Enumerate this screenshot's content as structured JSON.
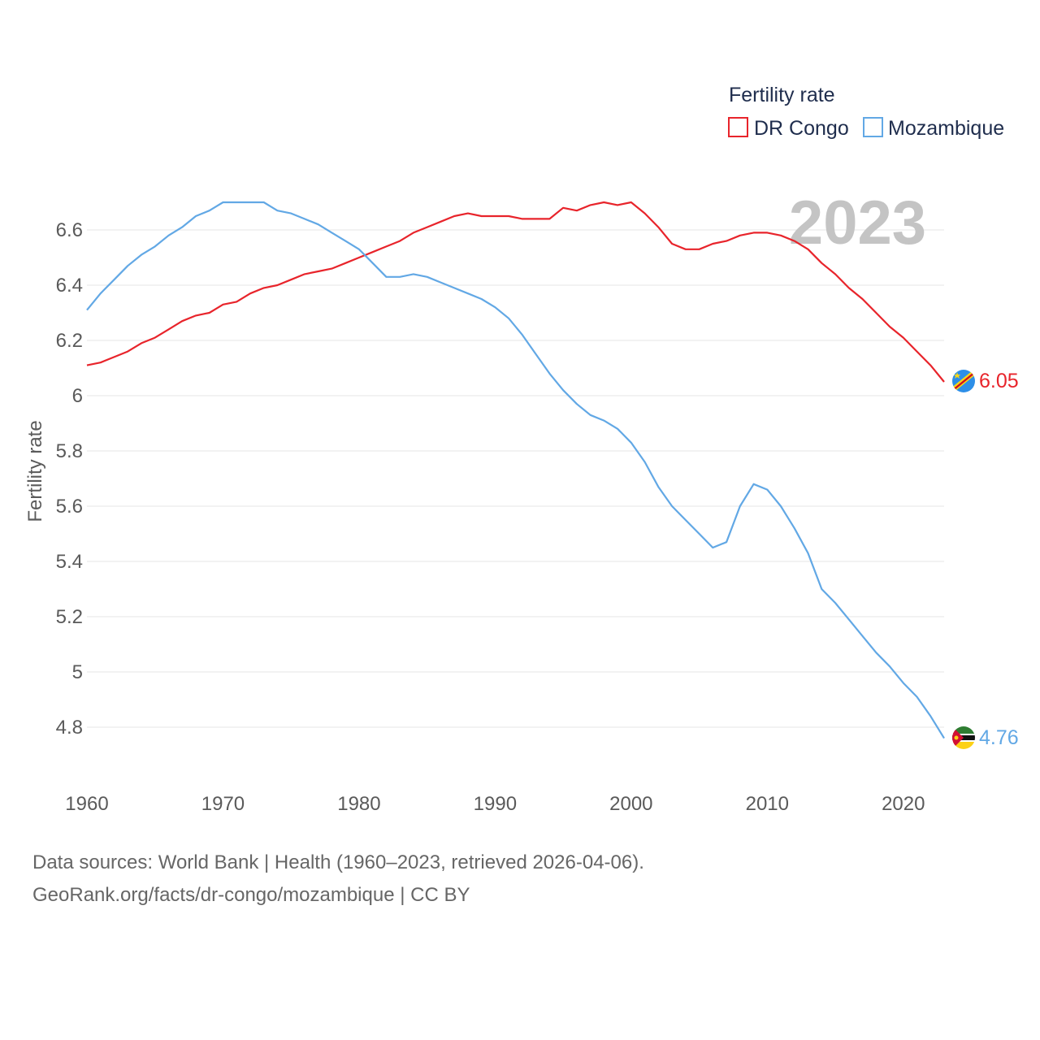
{
  "chart_data": {
    "type": "line",
    "legend_title": "Fertility rate",
    "ylabel": "Fertility rate",
    "xlabel": "",
    "year_label": "2023",
    "xlim": [
      1960,
      2023
    ],
    "ylim": [
      4.6,
      6.8
    ],
    "x_ticks": [
      "1960",
      "1970",
      "1980",
      "1990",
      "2000",
      "2010",
      "2020"
    ],
    "y_ticks": [
      "4.8",
      "5",
      "5.2",
      "5.4",
      "5.6",
      "5.8",
      "6",
      "6.2",
      "6.4",
      "6.6"
    ],
    "x": [
      1960,
      1961,
      1962,
      1963,
      1964,
      1965,
      1966,
      1967,
      1968,
      1969,
      1970,
      1971,
      1972,
      1973,
      1974,
      1975,
      1976,
      1977,
      1978,
      1979,
      1980,
      1981,
      1982,
      1983,
      1984,
      1985,
      1986,
      1987,
      1988,
      1989,
      1990,
      1991,
      1992,
      1993,
      1994,
      1995,
      1996,
      1997,
      1998,
      1999,
      2000,
      2001,
      2002,
      2003,
      2004,
      2005,
      2006,
      2007,
      2008,
      2009,
      2010,
      2011,
      2012,
      2013,
      2014,
      2015,
      2016,
      2017,
      2018,
      2019,
      2020,
      2021,
      2022,
      2023
    ],
    "series": [
      {
        "name": "DR Congo",
        "color": "#e8242b",
        "end_label": "6.05",
        "flag": "dr-congo-flag-icon",
        "values": [
          6.11,
          6.12,
          6.14,
          6.16,
          6.19,
          6.21,
          6.24,
          6.27,
          6.29,
          6.3,
          6.33,
          6.34,
          6.37,
          6.39,
          6.4,
          6.42,
          6.44,
          6.45,
          6.46,
          6.48,
          6.5,
          6.52,
          6.54,
          6.56,
          6.59,
          6.61,
          6.63,
          6.65,
          6.66,
          6.65,
          6.65,
          6.65,
          6.64,
          6.64,
          6.64,
          6.68,
          6.67,
          6.69,
          6.7,
          6.69,
          6.7,
          6.66,
          6.61,
          6.55,
          6.53,
          6.53,
          6.55,
          6.56,
          6.58,
          6.59,
          6.59,
          6.58,
          6.56,
          6.53,
          6.48,
          6.44,
          6.39,
          6.35,
          6.3,
          6.25,
          6.21,
          6.16,
          6.11,
          6.05
        ]
      },
      {
        "name": "Mozambique",
        "color": "#62a8e5",
        "end_label": "4.76",
        "flag": "mozambique-flag-icon",
        "values": [
          6.31,
          6.37,
          6.42,
          6.47,
          6.51,
          6.54,
          6.58,
          6.61,
          6.65,
          6.67,
          6.7,
          6.7,
          6.7,
          6.7,
          6.67,
          6.66,
          6.64,
          6.62,
          6.59,
          6.56,
          6.53,
          6.48,
          6.43,
          6.43,
          6.44,
          6.43,
          6.41,
          6.39,
          6.37,
          6.35,
          6.32,
          6.28,
          6.22,
          6.15,
          6.08,
          6.02,
          5.97,
          5.93,
          5.91,
          5.88,
          5.83,
          5.76,
          5.67,
          5.6,
          5.55,
          5.5,
          5.45,
          5.47,
          5.6,
          5.68,
          5.66,
          5.6,
          5.52,
          5.43,
          5.3,
          5.25,
          5.19,
          5.13,
          5.07,
          5.02,
          4.96,
          4.91,
          4.84,
          4.76
        ]
      }
    ]
  },
  "footer": {
    "source_line": "Data sources: World Bank | Health (1960–2023, retrieved 2026-04-06).",
    "credit_line": "GeoRank.org/facts/dr-congo/mozambique | CC BY"
  }
}
